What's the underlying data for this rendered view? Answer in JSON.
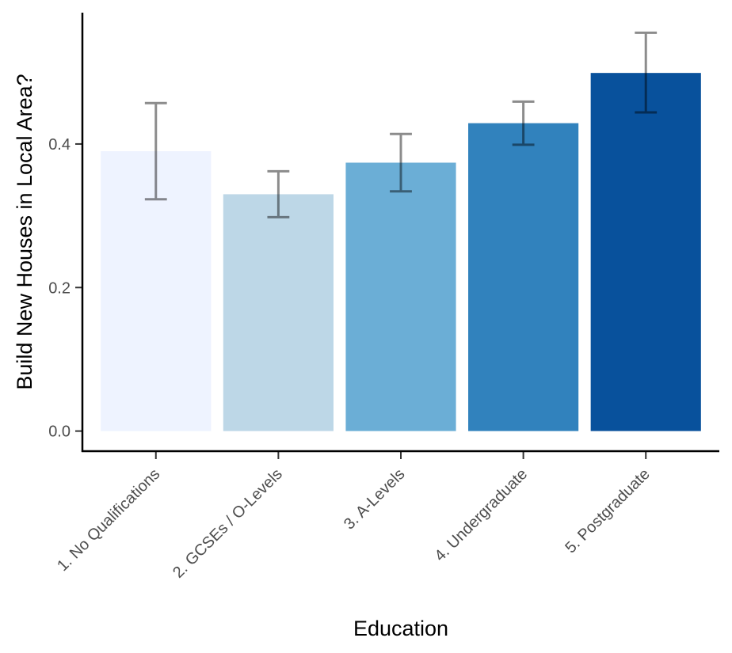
{
  "chart_data": {
    "type": "bar",
    "categories": [
      "1. No Qualifications",
      "2. GCSEs / O-Levels",
      "3. A-Levels",
      "4. Undergraduate",
      "5. Postgraduate"
    ],
    "values": [
      0.39,
      0.33,
      0.374,
      0.429,
      0.499
    ],
    "error_low": [
      0.323,
      0.298,
      0.334,
      0.399,
      0.444
    ],
    "error_high": [
      0.457,
      0.362,
      0.414,
      0.459,
      0.555
    ],
    "colors": [
      "#eef3ff",
      "#bdd7e7",
      "#6baed6",
      "#3182bd",
      "#08519c"
    ],
    "xlabel": "Education",
    "ylabel": "Build New Houses in Local Area?",
    "yticks": [
      0.0,
      0.2,
      0.4
    ],
    "ytick_labels": [
      "0.0",
      "0.2",
      "0.4"
    ],
    "ylim": [
      -0.028,
      0.583
    ],
    "grid": false,
    "legend": "none"
  }
}
